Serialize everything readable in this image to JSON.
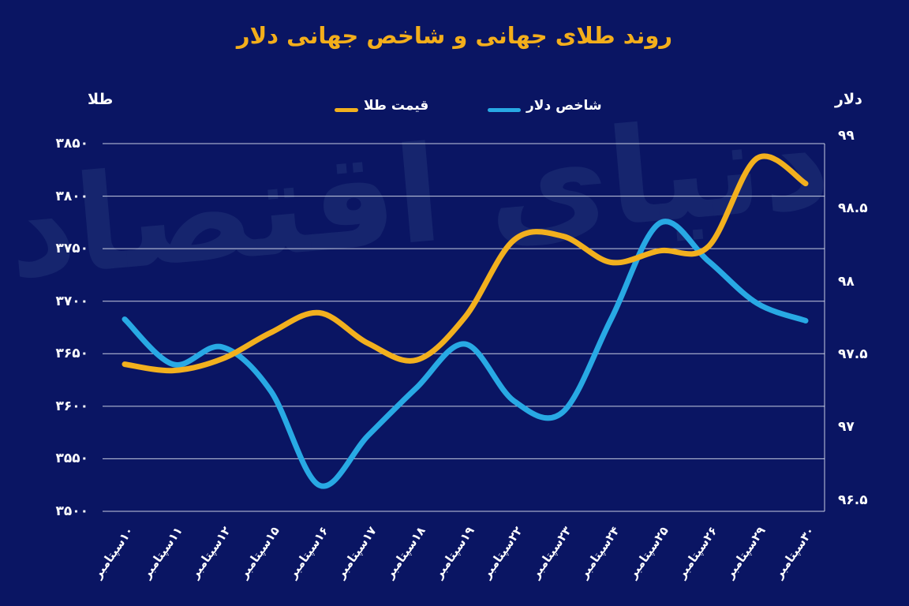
{
  "title": "روند طلای جهانی و شاخص جهانی دلار",
  "watermark": "دنیای اقتصاد",
  "colors": {
    "background": "#0a1563",
    "gold": "#f2b01e",
    "blue": "#28a9e4",
    "grid": "#e9edf8",
    "text": "#ffffff",
    "title": "#f3ae1b",
    "watermark": "#16256e"
  },
  "left_axis": {
    "header": "طلا",
    "labels": [
      "۳۸۵۰",
      "۳۸۰۰",
      "۳۷۵۰",
      "۳۷۰۰",
      "۳۶۵۰",
      "۳۶۰۰",
      "۳۵۵۰",
      "۳۵۰۰"
    ],
    "values": [
      3850,
      3800,
      3750,
      3700,
      3650,
      3600,
      3550,
      3500
    ]
  },
  "right_axis": {
    "header": "دلار",
    "labels": [
      "۹۹",
      "۹۸.۵",
      "۹۸",
      "۹۷.۵",
      "۹۷",
      "۹۶.۵"
    ],
    "values": [
      99,
      98.5,
      98,
      97.5,
      97,
      96.5
    ]
  },
  "legend": [
    {
      "label": "قیمت طلا",
      "color_key": "gold",
      "dash_width": 30
    },
    {
      "label": "شاخص دلار",
      "color_key": "blue",
      "dash_width": 42
    }
  ],
  "chart_data": {
    "type": "line",
    "title": "روند طلای جهانی و شاخص جهانی دلار",
    "categories": [
      "۱۰سپتامبر",
      "۱۱سپتامبر",
      "۱۲سپتامبر",
      "۱۵سپتامبر",
      "۱۶سپتامبر",
      "۱۷سپتامبر",
      "۱۸سپتامبر",
      "۱۹سپتامبر",
      "۲۲سپتامبر",
      "۲۳سپتامبر",
      "۲۴سپتامبر",
      "۲۵سپتامبر",
      "۲۶سپتامبر",
      "۲۹سپتامبر",
      "۳۰سپتامبر"
    ],
    "series": [
      {
        "name": "قیمت طلا",
        "axis": "left",
        "color_key": "gold",
        "values": [
          3640,
          3634,
          3645,
          3670,
          3689,
          3660,
          3644,
          3685,
          3758,
          3762,
          3737,
          3748,
          3752,
          3836,
          3812
        ]
      },
      {
        "name": "شاخص دلار",
        "axis": "right",
        "color_key": "blue",
        "values": [
          97.74,
          97.43,
          97.55,
          97.25,
          96.6,
          96.94,
          97.27,
          97.57,
          97.18,
          97.1,
          97.74,
          98.4,
          98.14,
          97.85,
          97.73
        ]
      }
    ],
    "left_ylim": [
      3500,
      3850
    ],
    "right_ylim": [
      96.5,
      99
    ],
    "grid": "horizontal",
    "legend_position": "top"
  }
}
